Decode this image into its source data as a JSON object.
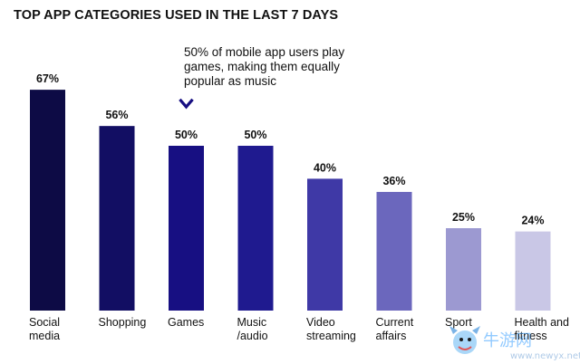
{
  "chart_data": {
    "type": "bar",
    "title": "TOP APP CATEGORIES USED IN THE LAST 7 DAYS",
    "categories": [
      [
        "Social",
        "media"
      ],
      [
        "Shopping"
      ],
      [
        "Games"
      ],
      [
        "Music",
        "/audio"
      ],
      [
        "Video",
        "streaming"
      ],
      [
        "Current",
        "affairs"
      ],
      [
        "Sport"
      ],
      [
        "Health and",
        "fitness"
      ]
    ],
    "values": [
      67,
      56,
      50,
      50,
      40,
      36,
      25,
      24
    ],
    "value_labels": [
      "67%",
      "56%",
      "50%",
      "50%",
      "40%",
      "36%",
      "25%",
      "24%"
    ],
    "colors": [
      "#0d0b45",
      "#120e63",
      "#170f82",
      "#1f1a8f",
      "#3f39a6",
      "#6b67bd",
      "#9c99d1",
      "#c9c7e6"
    ],
    "ylim": [
      0,
      75
    ],
    "grid": false,
    "annotation": {
      "lines": [
        "50% of mobile app users play",
        "games, making them equally",
        "popular as music"
      ],
      "target_index": 2,
      "arrow_color": "#170f82"
    }
  },
  "watermark": {
    "text": "牛游网",
    "url": "www.newyx.net"
  }
}
